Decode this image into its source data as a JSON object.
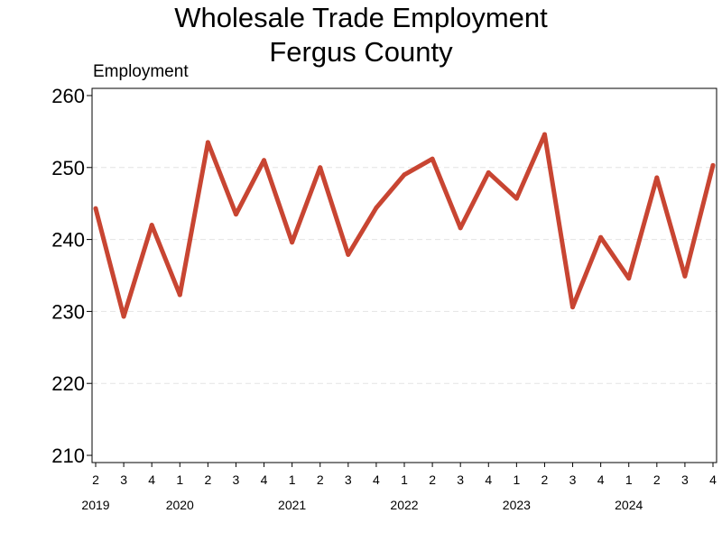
{
  "chart_data": {
    "type": "line",
    "title": [
      "Wholesale Trade Employment",
      "Fergus County"
    ],
    "ylabel": "Employment",
    "xlabel": "",
    "ylim": [
      209,
      261
    ],
    "yticks": [
      210,
      220,
      230,
      240,
      250,
      260
    ],
    "grid": true,
    "line_color": "#c84532",
    "quarters": [
      "2",
      "3",
      "4",
      "1",
      "2",
      "3",
      "4",
      "1",
      "2",
      "3",
      "4",
      "1",
      "2",
      "3",
      "4",
      "1",
      "2",
      "3",
      "4",
      "1",
      "2",
      "3",
      "4"
    ],
    "year_labels": [
      {
        "year": "2019",
        "at_index": 0
      },
      {
        "year": "2020",
        "at_index": 3
      },
      {
        "year": "2021",
        "at_index": 7
      },
      {
        "year": "2022",
        "at_index": 11
      },
      {
        "year": "2023",
        "at_index": 15
      },
      {
        "year": "2024",
        "at_index": 19
      }
    ],
    "series": [
      {
        "values": [
          244.3,
          229.3,
          242.0,
          232.3,
          253.5,
          243.5,
          251.0,
          239.6,
          250.0,
          237.9,
          244.4,
          249.0,
          251.2,
          241.6,
          249.3,
          245.7,
          254.6,
          230.6,
          240.3,
          234.6,
          248.6,
          234.9,
          250.3
        ]
      }
    ]
  }
}
